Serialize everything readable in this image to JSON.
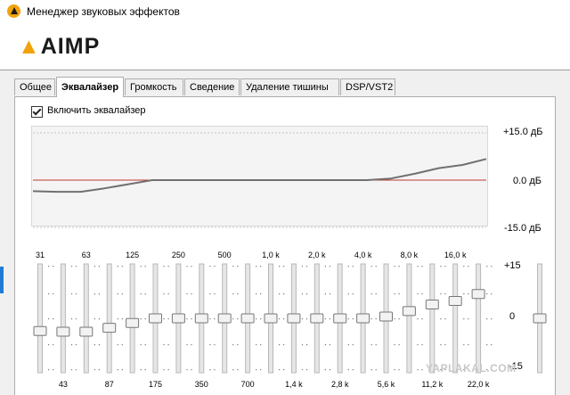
{
  "window": {
    "title": "Менеджер звуковых эффектов"
  },
  "logo": {
    "text": "AIMP"
  },
  "tabs": [
    {
      "label": "Общее",
      "active": false
    },
    {
      "label": "Эквалайзер",
      "active": true
    },
    {
      "label": "Громкость",
      "active": false
    },
    {
      "label": "Сведение",
      "active": false
    },
    {
      "label": "Удаление тишины",
      "active": false
    },
    {
      "label": "DSP/VST2",
      "active": false
    }
  ],
  "equalizer": {
    "enable_label": "Включить эквалайзер",
    "enabled": true,
    "graph_scale": {
      "top": "+15.0 дБ",
      "mid": "0.0 дБ",
      "bottom": "-15.0 дБ"
    },
    "slider_scale": {
      "top": "+15",
      "mid": "0",
      "bottom": "-15"
    },
    "bands": [
      {
        "label": "31",
        "value": -3.5
      },
      {
        "label": "43",
        "value": -3.7
      },
      {
        "label": "63",
        "value": -3.7
      },
      {
        "label": "87",
        "value": -2.6
      },
      {
        "label": "125",
        "value": -1.3
      },
      {
        "label": "175",
        "value": 0
      },
      {
        "label": "250",
        "value": 0
      },
      {
        "label": "350",
        "value": 0
      },
      {
        "label": "500",
        "value": 0
      },
      {
        "label": "700",
        "value": 0
      },
      {
        "label": "1,0 k",
        "value": 0
      },
      {
        "label": "1,4 k",
        "value": 0
      },
      {
        "label": "2,0 k",
        "value": 0
      },
      {
        "label": "2,8 k",
        "value": 0
      },
      {
        "label": "4,0 k",
        "value": 0
      },
      {
        "label": "5,6 k",
        "value": 0.5
      },
      {
        "label": "8,0 k",
        "value": 2.0
      },
      {
        "label": "11,2 k",
        "value": 3.8
      },
      {
        "label": "16,0 k",
        "value": 4.8
      },
      {
        "label": "22,0 k",
        "value": 6.7
      }
    ],
    "preamp": {
      "value": 0
    }
  },
  "watermark": "YAPLAKAL.COM"
}
